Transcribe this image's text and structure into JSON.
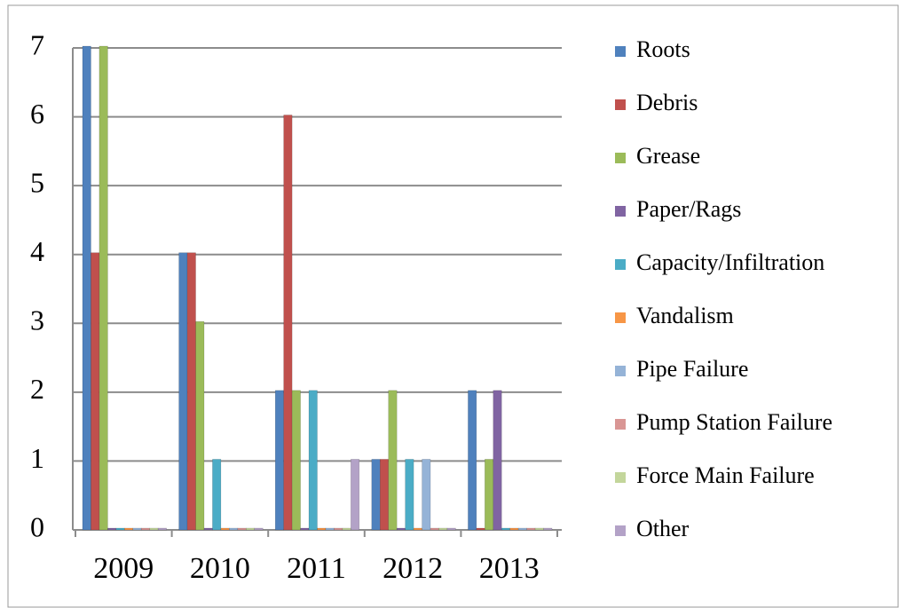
{
  "chart_data": {
    "type": "bar",
    "categories": [
      "2009",
      "2010",
      "2011",
      "2012",
      "2013"
    ],
    "series": [
      {
        "name": "Roots",
        "color": "#4f81bd",
        "values": [
          7,
          4,
          2,
          1,
          2
        ]
      },
      {
        "name": "Debris",
        "color": "#c0504d",
        "values": [
          4,
          4,
          6,
          1,
          0
        ]
      },
      {
        "name": "Grease",
        "color": "#9bbb59",
        "values": [
          7,
          3,
          2,
          2,
          1
        ]
      },
      {
        "name": "Paper/Rags",
        "color": "#8064a2",
        "values": [
          0,
          0,
          0,
          0,
          2
        ]
      },
      {
        "name": "Capacity/Infiltration",
        "color": "#4bacc6",
        "values": [
          0,
          1,
          2,
          1,
          0
        ]
      },
      {
        "name": "Vandalism",
        "color": "#f79646",
        "values": [
          0,
          0,
          0,
          0,
          0
        ]
      },
      {
        "name": "Pipe Failure",
        "color": "#95b3d7",
        "values": [
          0,
          0,
          0,
          1,
          0
        ]
      },
      {
        "name": "Pump Station Failure",
        "color": "#d99694",
        "values": [
          0,
          0,
          0,
          0,
          0
        ]
      },
      {
        "name": "Force Main Failure",
        "color": "#c3d69b",
        "values": [
          0,
          0,
          0,
          0,
          0
        ]
      },
      {
        "name": "Other",
        "color": "#b3a2c7",
        "values": [
          0,
          0,
          1,
          0,
          0
        ]
      }
    ],
    "ylim": [
      0,
      7
    ],
    "yticks": [
      0,
      1,
      2,
      3,
      4,
      5,
      6,
      7
    ],
    "grid": true,
    "legend": "right"
  }
}
